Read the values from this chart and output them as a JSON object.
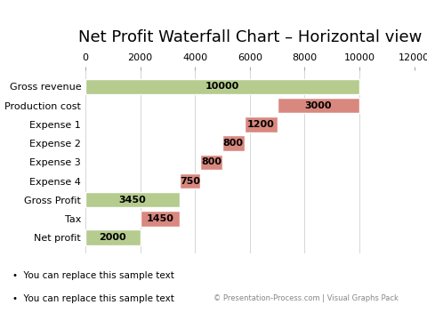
{
  "title": "Net Profit Waterfall Chart – Horizontal view",
  "categories": [
    "Gross revenue",
    "Production cost",
    "Expense 1",
    "Expense 2",
    "Expense 3",
    "Expense 4",
    "Gross Profit",
    "Tax",
    "Net profit"
  ],
  "values": [
    10000,
    3000,
    1200,
    800,
    800,
    750,
    3450,
    1450,
    2000
  ],
  "starts": [
    0,
    7000,
    5800,
    5000,
    4200,
    3450,
    0,
    2000,
    0
  ],
  "colors": [
    "#b5cc8e",
    "#d9887f",
    "#d9887f",
    "#d9887f",
    "#d9887f",
    "#d9887f",
    "#b5cc8e",
    "#d9887f",
    "#b5cc8e"
  ],
  "xlim": [
    0,
    12000
  ],
  "xticks": [
    0,
    2000,
    4000,
    6000,
    8000,
    10000,
    12000
  ],
  "background_color": "#ffffff",
  "bar_height": 0.82,
  "label_fontsize": 8,
  "title_fontsize": 13,
  "ytick_fontsize": 8,
  "xtick_fontsize": 8,
  "annotation_texts": [
    "You can replace this sample text",
    "You can replace this sample text"
  ],
  "footer_text": "© Presentation-Process.com | Visual Graphs Pack",
  "grid_color": "#d0d0d0",
  "edgecolor": "#ffffff"
}
